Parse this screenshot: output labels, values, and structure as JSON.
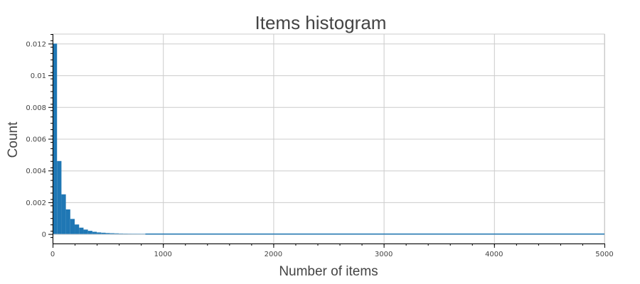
{
  "chart_data": {
    "type": "bar",
    "title": "Items histogram",
    "xlabel": "Number of items",
    "ylabel": "Count",
    "xlim": [
      0,
      5000
    ],
    "ylim": [
      -0.0006,
      0.0126
    ],
    "grid": true,
    "legend": "none",
    "x_ticks": [
      0,
      1000,
      2000,
      3000,
      4000,
      5000
    ],
    "x_tick_labels": [
      "0",
      "1000",
      "2000",
      "3000",
      "4000",
      "5000"
    ],
    "y_ticks": [
      0,
      0.002,
      0.004,
      0.006,
      0.008,
      0.01,
      0.012
    ],
    "y_tick_labels": [
      "0",
      "0.002",
      "0.004",
      "0.006",
      "0.008",
      "0.01",
      "0.012"
    ],
    "bin_width": 40,
    "bin_start": 0,
    "series": [
      {
        "values": [
          0.012,
          0.0046,
          0.0025,
          0.00155,
          0.00095,
          0.0006,
          0.0004,
          0.00028,
          0.0002,
          0.00014,
          0.0001,
          8e-05,
          6e-05,
          5e-05,
          4e-05,
          3e-05,
          2.5e-05,
          2e-05,
          1.5e-05,
          1.2e-05,
          1e-05
        ]
      }
    ],
    "colors": {
      "bar": "#1f77b4",
      "baseline": "#1f77b4"
    }
  }
}
